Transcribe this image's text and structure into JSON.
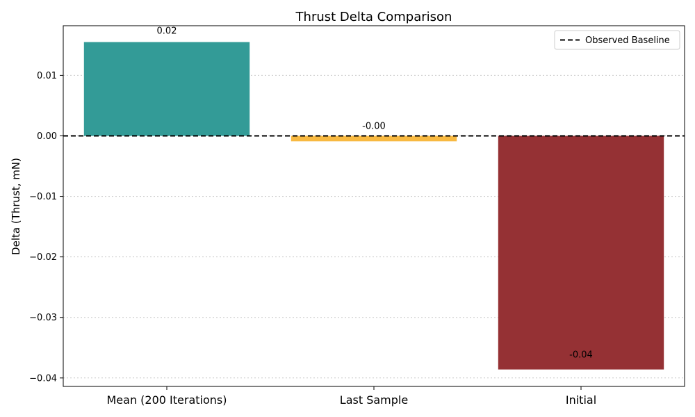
{
  "chart_data": {
    "type": "bar",
    "title": "Thrust Delta Comparison",
    "xlabel": "",
    "ylabel": "Delta (Thrust, mN)",
    "categories": [
      "Mean (200 Iterations)",
      "Last Sample",
      "Initial"
    ],
    "values": [
      0.0155,
      -0.0009,
      -0.0386
    ],
    "value_labels": [
      "0.02",
      "-0.00",
      "-0.04"
    ],
    "colors": [
      "#339b97",
      "#f8b941",
      "#953134"
    ],
    "ylim": [
      -0.0414,
      0.0182
    ],
    "yticks": [
      0.01,
      0.0,
      -0.01,
      -0.02,
      -0.03,
      -0.04
    ],
    "ytick_labels": [
      "0.01",
      "0.00",
      "−0.01",
      "−0.02",
      "−0.03",
      "−0.04"
    ],
    "baseline": {
      "value": 0.0,
      "label": "Observed Baseline",
      "style": "dashed",
      "color": "#000000"
    },
    "grid": {
      "y": true,
      "style": "dotted"
    },
    "legend": {
      "position": "top-right",
      "entries": [
        "Observed Baseline"
      ]
    }
  }
}
